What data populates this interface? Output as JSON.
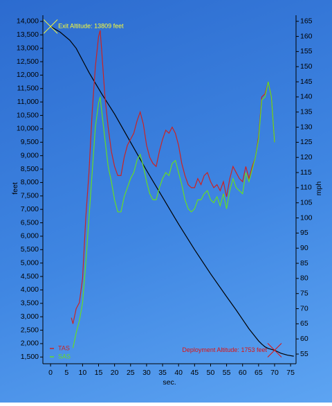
{
  "chart_data": {
    "type": "line",
    "xlabel": "sec.",
    "ylabel": "feet",
    "y2label": "mph",
    "xlim": [
      -2.4,
      76.7
    ],
    "ylim": [
      1250,
      14230
    ],
    "y2lim": [
      51.8,
      167
    ],
    "xticks": [
      0,
      5,
      10,
      15,
      20,
      25,
      30,
      35,
      40,
      45,
      50,
      55,
      60,
      65,
      70,
      75
    ],
    "yticks": [
      {
        "value": 1500,
        "label": "1,500"
      },
      {
        "value": 2000,
        "label": "2,000"
      },
      {
        "value": 2500,
        "label": "2,500"
      },
      {
        "value": 3000,
        "label": "3,000"
      },
      {
        "value": 3500,
        "label": "3,500"
      },
      {
        "value": 4000,
        "label": "4,000"
      },
      {
        "value": 4500,
        "label": "4,500"
      },
      {
        "value": 5000,
        "label": "5,000"
      },
      {
        "value": 5500,
        "label": "5,500"
      },
      {
        "value": 6000,
        "label": "6,000"
      },
      {
        "value": 6500,
        "label": "6,500"
      },
      {
        "value": 7000,
        "label": "7,000"
      },
      {
        "value": 7500,
        "label": "7,500"
      },
      {
        "value": 8000,
        "label": "8,000"
      },
      {
        "value": 8500,
        "label": "8,500"
      },
      {
        "value": 9000,
        "label": "9,000"
      },
      {
        "value": 9500,
        "label": "9,500"
      },
      {
        "value": 10000,
        "label": "10,000"
      },
      {
        "value": 10500,
        "label": "10,500"
      },
      {
        "value": 11000,
        "label": "11,000"
      },
      {
        "value": 11500,
        "label": "11,500"
      },
      {
        "value": 12000,
        "label": "12,000"
      },
      {
        "value": 12500,
        "label": "12,500"
      },
      {
        "value": 13000,
        "label": "13,000"
      },
      {
        "value": 13500,
        "label": "13,500"
      },
      {
        "value": 14000,
        "label": "14,000"
      }
    ],
    "y2ticks": [
      55,
      60,
      65,
      70,
      75,
      80,
      85,
      90,
      95,
      100,
      105,
      110,
      115,
      120,
      125,
      130,
      135,
      140,
      145,
      150,
      155,
      160,
      165
    ],
    "legend": "lower left",
    "series": [
      {
        "color": "#000000",
        "x": [
          0,
          3,
          6,
          8,
          10,
          12,
          14,
          16,
          20,
          25,
          30,
          35,
          40,
          45,
          50,
          55,
          58,
          60,
          62,
          64,
          65,
          66,
          67,
          68,
          70,
          72,
          74,
          76
        ],
        "values": [
          13809,
          13600,
          13300,
          13000,
          12550,
          12100,
          11700,
          11300,
          10550,
          9500,
          8450,
          7450,
          6450,
          5500,
          4600,
          3750,
          3250,
          2900,
          2550,
          2250,
          2100,
          1980,
          1880,
          1820,
          1753,
          1640,
          1570,
          1530
        ]
      },
      {
        "name": "TAS",
        "color": "#cc2222",
        "axis": "y2",
        "x": [
          6.5,
          7,
          8,
          9,
          10,
          11,
          12,
          13,
          14,
          15,
          15.5,
          16,
          17,
          18,
          19,
          20,
          21,
          22,
          23,
          24,
          25,
          26,
          27,
          28,
          29,
          30,
          31,
          32,
          33,
          34,
          35,
          36,
          37,
          38,
          39,
          40,
          41,
          42,
          43,
          44,
          45,
          46,
          47,
          48,
          49,
          50,
          51,
          52,
          53,
          54,
          55,
          56,
          57,
          58,
          59,
          60,
          61,
          62,
          63,
          64,
          65,
          66,
          67,
          68,
          69,
          70
        ],
        "values": [
          67,
          65,
          70,
          72,
          80,
          100,
          115,
          135,
          150,
          160,
          162,
          155,
          140,
          130,
          122,
          117,
          114,
          114,
          120,
          124,
          126,
          128,
          132,
          135,
          131,
          124,
          120,
          118,
          117,
          122,
          126,
          129,
          128,
          130,
          128,
          124,
          118,
          114,
          111,
          110,
          110,
          113,
          111,
          114,
          115,
          112,
          110,
          111,
          109,
          112,
          107,
          113,
          117,
          115,
          113,
          112,
          117,
          113,
          117,
          120,
          127,
          140,
          141,
          145,
          140,
          125
        ]
      },
      {
        "name": "SAS",
        "color": "#66dd22",
        "axis": "y2",
        "x": [
          6.5,
          7,
          8,
          9,
          10,
          11,
          12,
          13,
          14,
          15,
          15.5,
          16,
          17,
          18,
          19,
          20,
          21,
          22,
          23,
          24,
          25,
          26,
          27,
          28,
          29,
          30,
          31,
          32,
          33,
          34,
          35,
          36,
          37,
          38,
          39,
          40,
          41,
          42,
          43,
          44,
          45,
          46,
          47,
          48,
          49,
          50,
          51,
          52,
          53,
          54,
          55,
          56,
          57,
          58,
          59,
          60,
          61,
          62,
          63,
          64,
          65,
          66,
          67,
          68,
          69,
          70
        ],
        "values": [
          null,
          57,
          62,
          66,
          72,
          85,
          100,
          115,
          130,
          138,
          140,
          135,
          126,
          117,
          112,
          106,
          102,
          102,
          107,
          110,
          113,
          115,
          119,
          121,
          117,
          112,
          108,
          106,
          106,
          110,
          113,
          115,
          114,
          118,
          119,
          115,
          111,
          106,
          103,
          102,
          103,
          106,
          106,
          108,
          109,
          106,
          105,
          107,
          104,
          108,
          103,
          109,
          113,
          110,
          109,
          108,
          115,
          112,
          116,
          120,
          126,
          139,
          140,
          145,
          140,
          125
        ]
      }
    ],
    "annotations": [
      {
        "text": "Exit Altitude: 13809 feet",
        "x": 0,
        "y": 13809,
        "color": "#ffff33"
      },
      {
        "text": "Deployment Altitude: 1753 feet",
        "x": 70,
        "y": 1753,
        "color": "#dd1111"
      }
    ]
  }
}
